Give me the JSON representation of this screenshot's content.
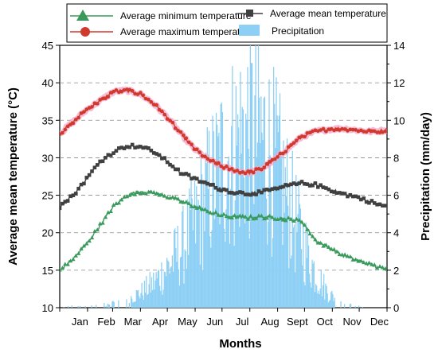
{
  "chart_data": {
    "type": "line",
    "title": "",
    "xlabel": "Months",
    "ylabel_left": "Average mean temperature (°C)",
    "ylabel_right": "Precipitation (mm/day)",
    "ylim_left": [
      10,
      45
    ],
    "ylim_right": [
      0,
      14
    ],
    "yticks_left": [
      10,
      15,
      20,
      25,
      30,
      35,
      40,
      45
    ],
    "yticks_right": [
      0,
      2,
      4,
      6,
      8,
      10,
      12,
      14
    ],
    "x_range_days": [
      0,
      365
    ],
    "grid_y": "dashed",
    "legend_position": "top",
    "categories": [
      "Jan",
      "Feb",
      "Mar",
      "Apr",
      "May",
      "Jun",
      "Jul",
      "Aug",
      "Sept",
      "Oct",
      "Nov",
      "Dec"
    ],
    "series": [
      {
        "name": "Average maximum temperature",
        "axis": "left",
        "marker": "circle",
        "color": "#cf3a2c",
        "halo_color": "#f4a6c8",
        "x": [
          0,
          15,
          30,
          45,
          60,
          75,
          90,
          105,
          120,
          135,
          150,
          165,
          180,
          195,
          210,
          225,
          240,
          255,
          270,
          285,
          300,
          315,
          330,
          345,
          360,
          365
        ],
        "values": [
          33.2,
          34.8,
          36.4,
          37.6,
          38.8,
          39.0,
          38.5,
          37.2,
          35.4,
          33.2,
          31.2,
          29.8,
          28.9,
          28.3,
          28.0,
          28.5,
          29.8,
          31.3,
          32.8,
          33.5,
          33.8,
          33.9,
          33.7,
          33.5,
          33.6,
          33.8
        ]
      },
      {
        "name": "Average mean temperature",
        "axis": "left",
        "marker": "square",
        "color": "#404040",
        "x": [
          0,
          15,
          30,
          45,
          60,
          75,
          90,
          105,
          120,
          135,
          150,
          165,
          180,
          195,
          210,
          225,
          240,
          255,
          270,
          285,
          300,
          315,
          330,
          345,
          360,
          365
        ],
        "values": [
          23.5,
          25.0,
          27.2,
          29.5,
          30.8,
          31.6,
          31.5,
          30.8,
          29.5,
          28.0,
          27.2,
          26.5,
          25.8,
          25.4,
          25.2,
          25.4,
          25.8,
          26.3,
          26.6,
          26.4,
          25.8,
          25.2,
          24.8,
          24.2,
          23.6,
          23.5
        ]
      },
      {
        "name": "Average minimum temperature",
        "axis": "left",
        "marker": "triangle",
        "color": "#3a9a5b",
        "x": [
          0,
          15,
          30,
          45,
          60,
          75,
          90,
          105,
          120,
          135,
          150,
          165,
          180,
          195,
          210,
          225,
          240,
          255,
          270,
          285,
          300,
          315,
          330,
          345,
          360,
          365
        ],
        "values": [
          15.0,
          16.5,
          18.5,
          21.0,
          23.5,
          25.0,
          25.5,
          25.3,
          24.8,
          24.2,
          23.5,
          22.8,
          22.3,
          22.1,
          22.0,
          22.1,
          22.0,
          21.8,
          21.5,
          19.0,
          18.0,
          17.0,
          16.4,
          15.8,
          15.2,
          15.0
        ]
      },
      {
        "name": "Precipitation",
        "axis": "right",
        "type": "bar",
        "color": "#8ed0f5",
        "x": [
          0,
          15,
          30,
          45,
          60,
          75,
          90,
          105,
          120,
          135,
          150,
          165,
          180,
          195,
          210,
          225,
          240,
          255,
          270,
          285,
          300,
          315,
          330,
          345,
          360,
          365
        ],
        "values": [
          0.0,
          0.1,
          0.1,
          0.2,
          0.3,
          0.5,
          0.9,
          1.5,
          2.4,
          3.5,
          5.0,
          6.8,
          8.5,
          9.5,
          10.5,
          10.0,
          8.5,
          6.2,
          4.0,
          2.0,
          0.8,
          0.3,
          0.1,
          0.0,
          0.0,
          0.0
        ]
      }
    ]
  }
}
